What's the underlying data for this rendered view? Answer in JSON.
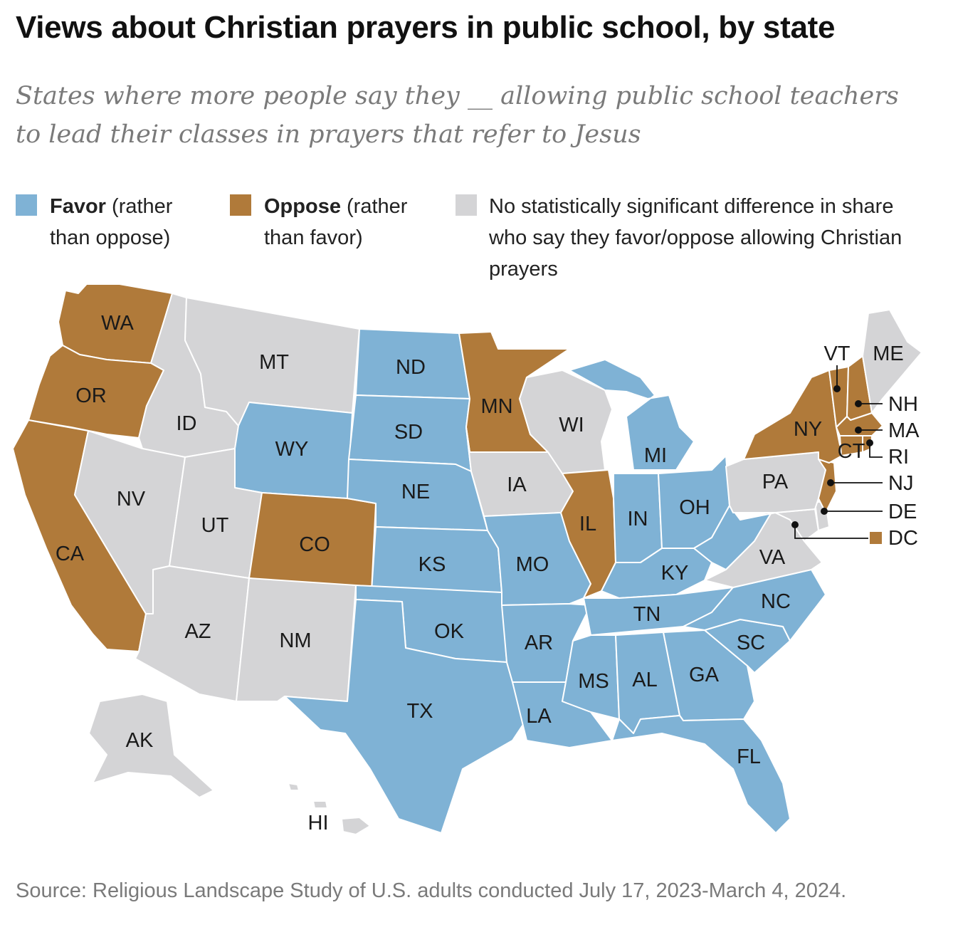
{
  "title": "Views about Christian prayers in public school, by state",
  "subtitle": "States where more people say they __ allowing public school teachers to lead their classes in prayers that refer to Jesus",
  "legend": {
    "favor": {
      "bold": "Favor",
      "rest": " (rather than oppose)",
      "color": "#7fb2d5"
    },
    "oppose": {
      "bold": "Oppose",
      "rest": " (rather than favor)",
      "color": "#b07a3a"
    },
    "none": {
      "text": "No statistically significant difference in share who say they favor/oppose allowing Christian prayers",
      "color": "#d4d4d6"
    }
  },
  "colors": {
    "favor": "#7fb2d5",
    "oppose": "#b07a3a",
    "none": "#d4d4d6"
  },
  "states": {
    "WA": "oppose",
    "OR": "oppose",
    "CA": "oppose",
    "CO": "oppose",
    "MN": "oppose",
    "IL": "oppose",
    "NY": "oppose",
    "VT": "oppose",
    "NH": "oppose",
    "MA": "oppose",
    "CT": "oppose",
    "RI": "oppose",
    "NJ": "oppose",
    "DC": "oppose",
    "ND": "favor",
    "SD": "favor",
    "NE": "favor",
    "KS": "favor",
    "OK": "favor",
    "TX": "favor",
    "WY": "favor",
    "MO": "favor",
    "AR": "favor",
    "LA": "favor",
    "MS": "favor",
    "AL": "favor",
    "GA": "favor",
    "FL": "favor",
    "SC": "favor",
    "NC": "favor",
    "TN": "favor",
    "KY": "favor",
    "IN": "favor",
    "OH": "favor",
    "MI": "favor",
    "WV": "favor",
    "MT": "none",
    "ID": "none",
    "NV": "none",
    "UT": "none",
    "AZ": "none",
    "NM": "none",
    "IA": "none",
    "WI": "none",
    "PA": "none",
    "VA": "none",
    "MD": "none",
    "DE": "none",
    "ME": "none",
    "AK": "none",
    "HI": "none"
  },
  "labels": {
    "WA": "WA",
    "OR": "OR",
    "CA": "CA",
    "ID": "ID",
    "NV": "NV",
    "MT": "MT",
    "WY": "WY",
    "UT": "UT",
    "CO": "CO",
    "AZ": "AZ",
    "NM": "NM",
    "ND": "ND",
    "SD": "SD",
    "NE": "NE",
    "KS": "KS",
    "OK": "OK",
    "TX": "TX",
    "MN": "MN",
    "IA": "IA",
    "MO": "MO",
    "AR": "AR",
    "LA": "LA",
    "WI": "WI",
    "IL": "IL",
    "MS": "MS",
    "MI": "MI",
    "IN": "IN",
    "KY": "KY",
    "TN": "TN",
    "AL": "AL",
    "OH": "OH",
    "GA": "GA",
    "FL": "FL",
    "SC": "SC",
    "NC": "NC",
    "VA": "VA",
    "PA": "PA",
    "NY": "NY",
    "ME": "ME",
    "CT": "CT",
    "AK": "AK",
    "HI": "HI",
    "VT": "VT",
    "NH": "NH",
    "MA": "MA",
    "RI": "RI",
    "NJ": "NJ",
    "DE": "DE",
    "DC": "DC"
  },
  "source": "Source: Religious Landscape Study of U.S. adults conducted July 17, 2023-March 4, 2024."
}
